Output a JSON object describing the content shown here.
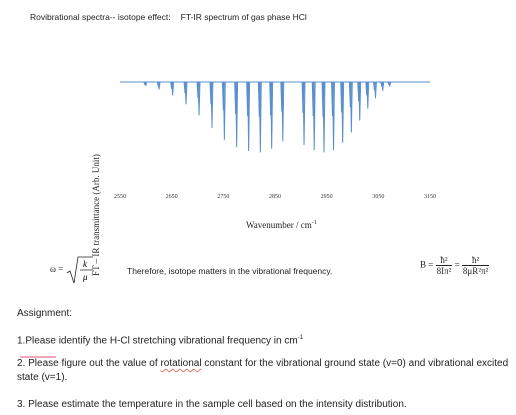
{
  "header": {
    "title_left": "Rovibrational spectra-- isotope effect:",
    "title_right": "FT-IR spectrum of gas phase HCl"
  },
  "chart_data": {
    "type": "line",
    "title": "",
    "xlabel": "Wavenumber / cm",
    "xlabel_sup": "-1",
    "ylabel": "FT – IR transmittance (Arb. Unit)",
    "xlim": [
      2550,
      3150
    ],
    "xticks": [
      "2550",
      "2650",
      "2750",
      "2850",
      "2950",
      "3050",
      "3150"
    ],
    "yaxis_ticks": false,
    "baseline": 1.0,
    "color": "#5b8fce",
    "lines_center": 2886,
    "series": [
      {
        "name": "",
        "x": [
          2600.0,
          2625.7,
          2651.9,
          2677.8,
          2703.0,
          2728.0,
          2752.0,
          2775.8,
          2799.0,
          2821.6,
          2843.6,
          2865.1,
          2906.2,
          2925.9,
          2944.9,
          2963.3,
          2981.0,
          2997.8,
          3014.0,
          3029.6,
          3044.5,
          3058.5,
          3072.2
        ],
        "depth": [
          0.05,
          0.1,
          0.18,
          0.3,
          0.45,
          0.62,
          0.78,
          0.88,
          0.93,
          0.95,
          0.9,
          0.8,
          0.85,
          0.92,
          0.95,
          0.92,
          0.82,
          0.68,
          0.52,
          0.36,
          0.22,
          0.12,
          0.06
        ]
      },
      {
        "name": "",
        "x": [
          2598.0,
          2623.8,
          2649.9,
          2675.8,
          2701.0,
          2726.0,
          2750.0,
          2773.8,
          2797.0,
          2819.6,
          2841.6,
          2863.1,
          2904.2,
          2923.9,
          2942.9,
          2961.3,
          2979.0,
          2995.8,
          3012.0,
          3027.6,
          3042.5,
          3056.5,
          3070.2
        ],
        "depth": [
          0.03,
          0.05,
          0.09,
          0.15,
          0.22,
          0.3,
          0.38,
          0.43,
          0.46,
          0.47,
          0.45,
          0.4,
          0.42,
          0.46,
          0.47,
          0.46,
          0.41,
          0.34,
          0.26,
          0.18,
          0.11,
          0.06,
          0.03
        ]
      }
    ]
  },
  "formulas": {
    "omega_lhs": "ω =",
    "omega_num": "k",
    "omega_den": "μ",
    "therefore": "Therefore, isotope matters in the vibrational frequency.",
    "b_lhs": "B =",
    "b_num1": "ħ²",
    "b_den1": "8Iπ²",
    "b_eq": "=",
    "b_num2": "ħ²",
    "b_den2": "8μR²π²"
  },
  "assignment": {
    "heading": "Assignment:",
    "item1": "1.Please identify the H-Cl stretching vibrational frequency in cm",
    "item1_sup": "-1",
    "item2_a": "2. Please figure out the value of ",
    "item2_word": "rotational",
    "item2_b": " constant for the vibrational ground state (v=0) and vibrational excited state (v=1).",
    "item3": "3. Please estimate the temperature in the sample cell based on the intensity distribution."
  }
}
